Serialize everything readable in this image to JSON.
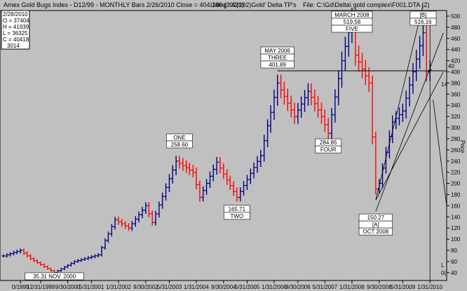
{
  "chart_data": {
    "type": "bar",
    "header": {
      "title": "Amex Gold Bugs Index - D12/99 - MONTHLY Bars  2/26/2010 Close = 404.180 (3.420)",
      "using": "Using '92(192)Gold' Delta TP's",
      "file": "File: C:\\Gd\\Delta\\ gold complex\\F001.DTA (2)"
    },
    "infobox": [
      "2/28/2010",
      "O = 37404",
      "H = 41939",
      "L = 36325",
      "C = 40418",
      "3014"
    ],
    "ylabel": "Price",
    "ylim": [
      26,
      510
    ],
    "y_ticks": [
      40,
      60,
      80,
      100,
      120,
      140,
      160,
      180,
      200,
      220,
      240,
      260,
      280,
      300,
      320,
      340,
      360,
      380,
      400,
      420,
      440,
      460,
      480,
      500
    ],
    "x_ticks": [
      {
        "date": "2000-01-01",
        "label": "0/1999"
      },
      {
        "date": "2000-07-01",
        "label": "12/31/1999"
      },
      {
        "date": "2001-03-01",
        "label": "9/30/2000"
      },
      {
        "date": "2001-10-01",
        "label": "5/31/2001"
      },
      {
        "date": "2002-06-01",
        "label": "1/31/2002"
      },
      {
        "date": "2003-02-01",
        "label": "9/30/2002"
      },
      {
        "date": "2003-09-01",
        "label": "5/31/2003"
      },
      {
        "date": "2004-05-01",
        "label": "1/31/2004"
      },
      {
        "date": "2005-01-01",
        "label": "9/30/2004"
      },
      {
        "date": "2005-08-01",
        "label": "5/31/2005"
      },
      {
        "date": "2006-04-01",
        "label": "1/31/2006"
      },
      {
        "date": "2006-11-01",
        "label": "9/30/2006"
      },
      {
        "date": "2007-07-01",
        "label": "5/31/2007"
      },
      {
        "date": "2008-03-01",
        "label": "1/31/2008"
      },
      {
        "date": "2008-11-01",
        "label": "9/30/2008"
      },
      {
        "date": "2009-06-01",
        "label": "5/31/2009"
      },
      {
        "date": "2010-02-01",
        "label": "1/31/2010"
      }
    ],
    "x_range": [
      "1999-07-01",
      "2010-07-01"
    ],
    "colors": {
      "up": "#000080",
      "down": "#ff0000",
      "background": "#c0c0c0",
      "frame": "#000000"
    },
    "anchors": [
      {
        "date": "1999-08-01",
        "price": 70
      },
      {
        "date": "2000-01-01",
        "price": 80
      },
      {
        "date": "2000-04-01",
        "price": 65
      },
      {
        "date": "2000-11-01",
        "price": 40
      },
      {
        "date": "2001-05-01",
        "price": 60
      },
      {
        "date": "2001-12-01",
        "price": 72
      },
      {
        "date": "2002-05-01",
        "price": 135
      },
      {
        "date": "2002-09-01",
        "price": 120
      },
      {
        "date": "2003-02-01",
        "price": 160
      },
      {
        "date": "2003-04-01",
        "price": 130
      },
      {
        "date": "2003-11-01",
        "price": 240
      },
      {
        "date": "2004-04-01",
        "price": 220
      },
      {
        "date": "2004-06-01",
        "price": 175
      },
      {
        "date": "2004-11-01",
        "price": 238
      },
      {
        "date": "2005-05-01",
        "price": 175
      },
      {
        "date": "2005-12-01",
        "price": 250
      },
      {
        "date": "2006-05-01",
        "price": 380
      },
      {
        "date": "2006-10-01",
        "price": 320
      },
      {
        "date": "2007-02-01",
        "price": 365
      },
      {
        "date": "2007-06-01",
        "price": 320
      },
      {
        "date": "2007-08-01",
        "price": 290
      },
      {
        "date": "2007-12-01",
        "price": 420
      },
      {
        "date": "2008-03-01",
        "price": 495
      },
      {
        "date": "2008-04-01",
        "price": 430
      },
      {
        "date": "2008-08-01",
        "price": 380
      },
      {
        "date": "2008-10-01",
        "price": 190
      },
      {
        "date": "2008-11-01",
        "price": 200
      },
      {
        "date": "2009-03-01",
        "price": 310
      },
      {
        "date": "2009-06-01",
        "price": 330
      },
      {
        "date": "2009-09-01",
        "price": 400
      },
      {
        "date": "2009-12-01",
        "price": 470
      },
      {
        "date": "2010-01-01",
        "price": 400
      },
      {
        "date": "2010-02-01",
        "price": 404
      }
    ],
    "annotations": [
      {
        "id": "nov2000",
        "date": "2000-11-01",
        "price": 35.31,
        "lines": [
          "35.31 NOV. 2000"
        ],
        "place": "below"
      },
      {
        "id": "one",
        "date": "2003-12-01",
        "price": 258.6,
        "lines": [
          "ONE",
          "258.60"
        ],
        "place": "above"
      },
      {
        "id": "two",
        "date": "2005-05-01",
        "price": 165.71,
        "lines": [
          "165.71",
          "TWO"
        ],
        "place": "below"
      },
      {
        "id": "may2006",
        "date": "2006-05-01",
        "price": 401.89,
        "lines": [
          "MAY 2006",
          "THREE",
          "401.89"
        ],
        "place": "above"
      },
      {
        "id": "four",
        "date": "2007-08-01",
        "price": 284.85,
        "lines": [
          "284.85",
          "FOUR"
        ],
        "place": "below"
      },
      {
        "id": "march2008",
        "date": "2008-03-01",
        "price": 519.58,
        "lines": [
          "MARCH 2008",
          "519.58",
          "FIVE"
        ],
        "place": "above"
      },
      {
        "id": "oct2008",
        "date": "2008-10-01",
        "price": 150.27,
        "lines": [
          "150.27",
          "[A]",
          "OCT 2008"
        ],
        "place": "below"
      },
      {
        "id": "b",
        "date": "2009-12-01",
        "price": 516.16,
        "lines": [
          "[B]",
          "516.16"
        ],
        "place": "above"
      }
    ],
    "reference_line": {
      "price": 401.89,
      "right_label": "40"
    },
    "edge_labels": [
      "14",
      "L",
      "0("
    ]
  }
}
